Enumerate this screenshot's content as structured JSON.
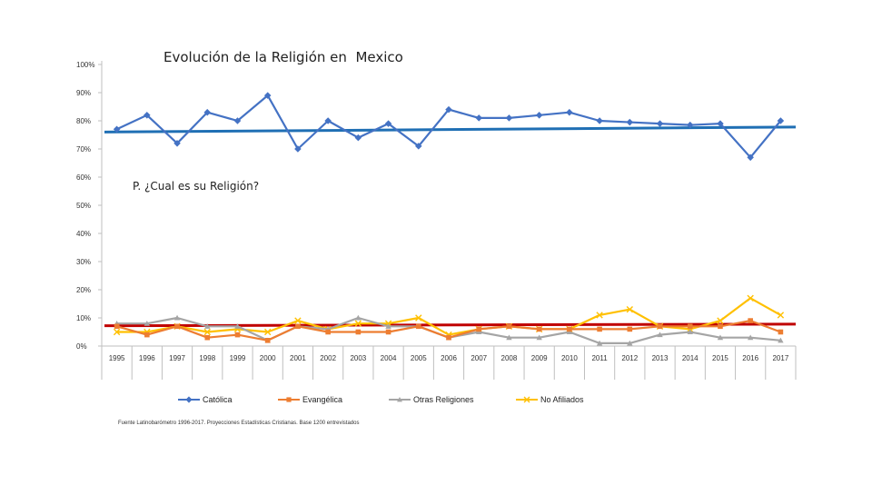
{
  "chart_data": {
    "type": "line",
    "title": "Evolución de la Religión en  Mexico",
    "annotation": "P. ¿Cual es su Religión?",
    "source": "Fuente Latinobarómetro 1996-2017. Proyecciones Estadísticas Cristianas. Base 1200 entrevistados",
    "categories": [
      "1995",
      "1996",
      "1997",
      "1998",
      "1999",
      "2000",
      "2001",
      "2002",
      "2003",
      "2004",
      "2005",
      "2006",
      "2007",
      "2008",
      "2009",
      "2010",
      "2011",
      "2012",
      "2013",
      "2014",
      "2015",
      "2016",
      "2017"
    ],
    "y_ticks": [
      0,
      10,
      20,
      30,
      40,
      50,
      60,
      70,
      80,
      90,
      100
    ],
    "y_tick_labels": [
      "0%",
      "10%",
      "20%",
      "30%",
      "40%",
      "50%",
      "60%",
      "70%",
      "80%",
      "90%",
      "100%"
    ],
    "ylim": [
      0,
      100
    ],
    "series": [
      {
        "name": "Católica",
        "color": "#4472C4",
        "marker": "diamond",
        "values": [
          77,
          82,
          72,
          83,
          80,
          89,
          70,
          80,
          74,
          79,
          71,
          84,
          81,
          81,
          82,
          83,
          80,
          79.5,
          79,
          78.5,
          79,
          67,
          80
        ]
      },
      {
        "name": "Evangélica",
        "color": "#ED7D31",
        "marker": "square",
        "values": [
          7,
          4,
          7,
          3,
          4,
          2,
          7,
          5,
          5,
          5,
          7,
          3,
          6,
          7,
          6,
          6,
          6,
          6,
          7,
          7,
          7,
          9,
          5
        ]
      },
      {
        "name": "Otras Religiones",
        "color": "#A5A5A5",
        "marker": "triangle",
        "values": [
          8,
          8,
          10,
          7,
          7,
          2,
          7,
          6,
          10,
          7,
          7,
          3,
          5,
          3,
          3,
          5,
          1,
          1,
          4,
          5,
          3,
          3,
          2
        ]
      },
      {
        "name": "No Afiliados",
        "color": "#FFC000",
        "marker": "x",
        "values": [
          5,
          5,
          7,
          5,
          6,
          5,
          9,
          6,
          8,
          8,
          10,
          4,
          6,
          7,
          6,
          6,
          11,
          13,
          7,
          6,
          9,
          17,
          11
        ]
      }
    ],
    "trendlines": [
      {
        "name": "tendencia-catolica",
        "color": "#1F6FB4",
        "start": 76,
        "end": 77.8
      },
      {
        "name": "tendencia-otros",
        "color": "#C00000",
        "start": 7.2,
        "end": 7.8
      }
    ]
  }
}
